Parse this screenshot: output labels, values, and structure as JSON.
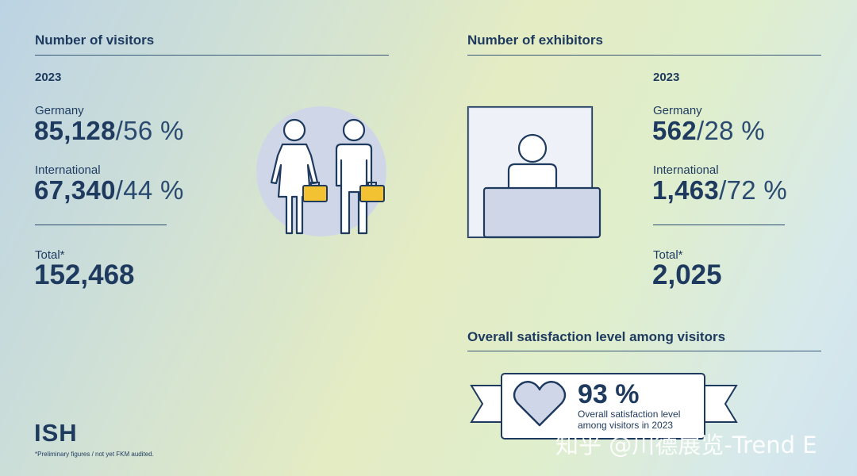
{
  "visitors": {
    "title": "Number of visitors",
    "year": "2023",
    "germany": {
      "label": "Germany",
      "value": "85,128",
      "sep": "/",
      "pct": "56 %"
    },
    "international": {
      "label": "International",
      "value": "67,340",
      "sep": "/",
      "pct": "44 %"
    },
    "total": {
      "label": "Total*",
      "value": "152,468"
    }
  },
  "exhibitors": {
    "title": "Number of exhibitors",
    "year": "2023",
    "germany": {
      "label": "Germany",
      "value": "562",
      "sep": "/",
      "pct": "28 %"
    },
    "international": {
      "label": "International",
      "value": "1,463",
      "sep": "/",
      "pct": "72 %"
    },
    "total": {
      "label": "Total*",
      "value": "2,025"
    }
  },
  "satisfaction": {
    "title": "Overall satisfaction level among visitors",
    "pct": "93 %",
    "desc_line1": "Overall satisfaction level",
    "desc_line2": "among visitors in 2023"
  },
  "footer": {
    "logo": "ISH",
    "note": "*Preliminary figures / not yet FKM audited."
  },
  "watermark": "知乎 @川德展览-Trend E",
  "colors": {
    "navy": "#1e3a5f",
    "accent_yellow": "#f2c233",
    "illustration_fill": "#cfd6e8"
  },
  "icons": [
    "visitors-illustration",
    "exhibitor-booth-illustration",
    "heart-icon",
    "ribbon-banner"
  ]
}
